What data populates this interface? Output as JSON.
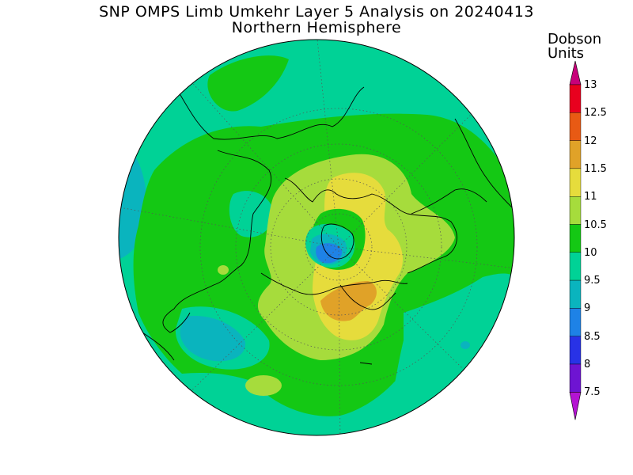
{
  "title": "SNP OMPS Limb Umkehr Layer 5 Analysis on 20240413",
  "subtitle": "Northern Hemisphere",
  "colorbar": {
    "units_line1": "Dobson",
    "units_line2": "Units",
    "levels": [
      {
        "label": "13",
        "color": "#c8007a"
      },
      {
        "label": "12.5",
        "color": "#e8001e"
      },
      {
        "label": "12",
        "color": "#e85a14"
      },
      {
        "label": "11.5",
        "color": "#e0a228"
      },
      {
        "label": "11",
        "color": "#e6dc3c"
      },
      {
        "label": "10.5",
        "color": "#a6dc3c"
      },
      {
        "label": "10",
        "color": "#14c814"
      },
      {
        "label": "9.5",
        "color": "#00d296"
      },
      {
        "label": "9",
        "color": "#0ab4be"
      },
      {
        "label": "8.5",
        "color": "#1e82e6"
      },
      {
        "label": "8",
        "color": "#2832e6"
      },
      {
        "label": "7.5",
        "color": "#6e14d2"
      }
    ],
    "top_cap_color": "#c8007a",
    "bottom_cap_color": "#b414d2"
  },
  "colors": {
    "background_field": "#00d296",
    "green_band": "#14c814",
    "ozone_yellow_green": "#a6dc3c",
    "ozone_yellow": "#e6dc3c",
    "ozone_orange": "#e0a228",
    "ozone_teal": "#0ab4be",
    "ozone_blue": "#1e82e6"
  }
}
